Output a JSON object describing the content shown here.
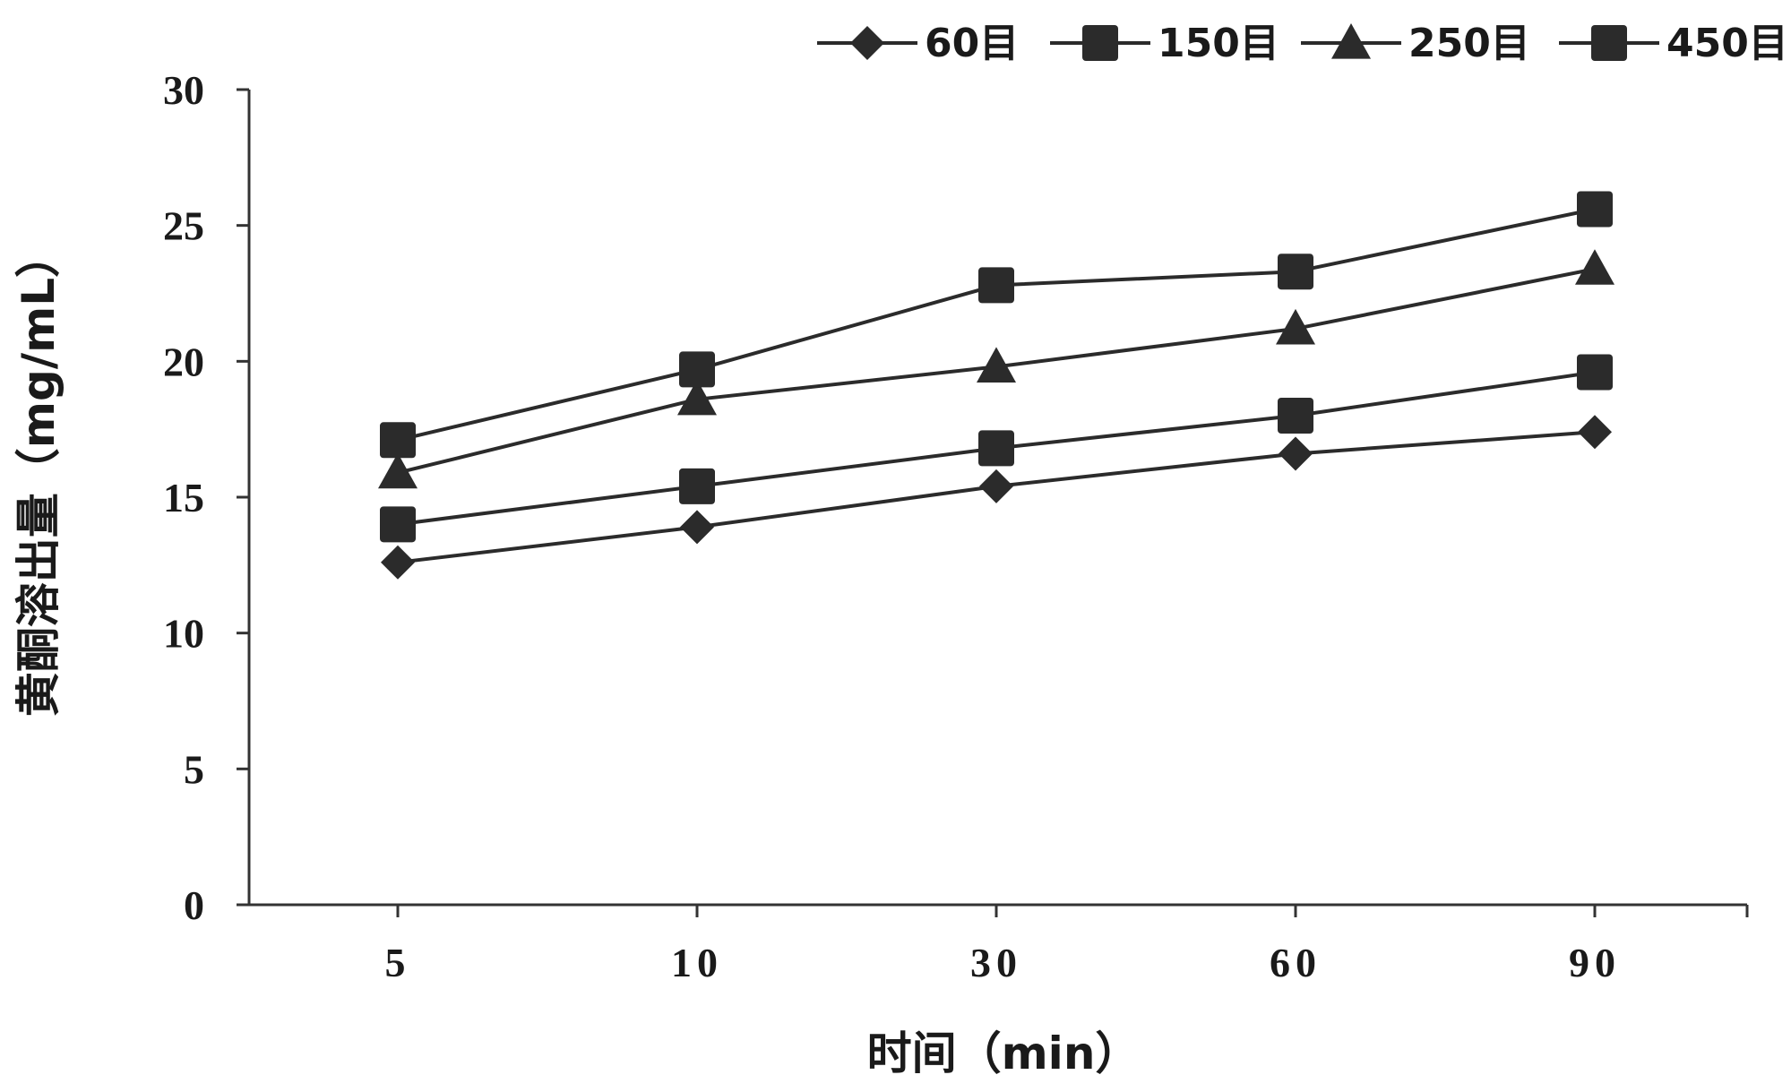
{
  "chart_data": {
    "type": "line",
    "title": "",
    "xlabel": "时间（min）",
    "ylabel": "黄酮溶出量（mg/mL）",
    "categories": [
      "5",
      "10",
      "30",
      "60",
      "90"
    ],
    "y_ticks": [
      "0",
      "5",
      "10",
      "15",
      "20",
      "25",
      "30"
    ],
    "ylim": [
      0,
      30
    ],
    "grid": false,
    "legend_position": "top-right",
    "series": [
      {
        "name": "60目",
        "marker": "diamond",
        "values": [
          12.6,
          13.9,
          15.4,
          16.6,
          17.4
        ]
      },
      {
        "name": "150目",
        "marker": "square",
        "values": [
          14.0,
          15.4,
          16.8,
          18.0,
          19.6
        ]
      },
      {
        "name": "250目",
        "marker": "triangle",
        "values": [
          15.9,
          18.6,
          19.8,
          21.2,
          23.4
        ]
      },
      {
        "name": "450目",
        "marker": "square",
        "values": [
          17.1,
          19.7,
          22.8,
          23.3,
          25.6
        ]
      }
    ]
  },
  "colors": {
    "line": "#2b2b2b",
    "marker": "#2b2b2b",
    "axis": "#333333"
  }
}
